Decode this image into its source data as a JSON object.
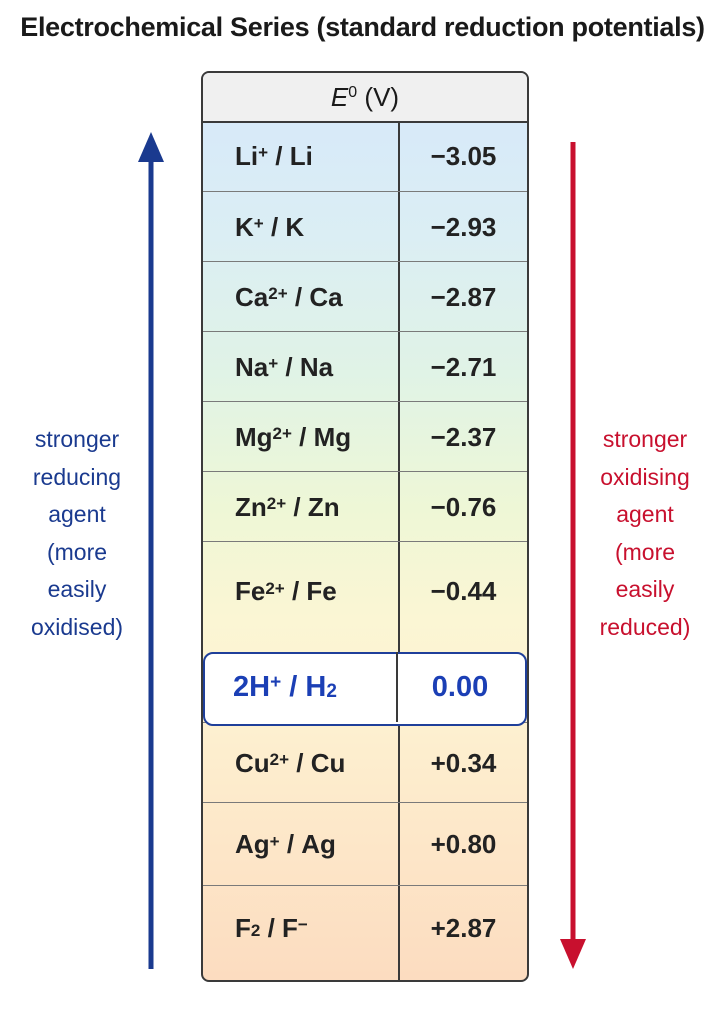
{
  "title": "Electrochemical Series (standard reduction potentials)",
  "header": {
    "symbol": "E",
    "superscript": "0",
    "unit": "(V)"
  },
  "rows": [
    {
      "ion": "Li",
      "ion_sup": "+",
      "sep": "/",
      "el": "Li",
      "el_sub": "",
      "el_sup": "",
      "value": "−3.05"
    },
    {
      "ion": "K",
      "ion_sup": "+",
      "sep": "/",
      "el": "K",
      "el_sub": "",
      "el_sup": "",
      "value": "−2.93"
    },
    {
      "ion": "Ca",
      "ion_sup": "2+",
      "sep": "/",
      "el": "Ca",
      "el_sub": "",
      "el_sup": "",
      "value": "−2.87"
    },
    {
      "ion": "Na",
      "ion_sup": "+",
      "sep": "/",
      "el": "Na",
      "el_sub": "",
      "el_sup": "",
      "value": "−2.71"
    },
    {
      "ion": "Mg",
      "ion_sup": "2+",
      "sep": "/",
      "el": "Mg",
      "el_sub": "",
      "el_sup": "",
      "value": "−2.37"
    },
    {
      "ion": "Zn",
      "ion_sup": "2+",
      "sep": "/",
      "el": "Zn",
      "el_sub": "",
      "el_sup": "",
      "value": "−0.76"
    },
    {
      "ion": "Fe",
      "ion_sup": "2+",
      "sep": "/",
      "el": "Fe",
      "el_sub": "",
      "el_sup": "",
      "value": "−0.44"
    },
    {
      "ion": "2H",
      "ion_sup": "+",
      "sep": "/",
      "el": "H",
      "el_sub": "2",
      "el_sup": "",
      "value": "0.00",
      "highlight": true
    },
    {
      "ion": "Cu",
      "ion_sup": "2+",
      "sep": "/",
      "el": "Cu",
      "el_sub": "",
      "el_sup": "",
      "value": "+0.34"
    },
    {
      "ion": "Ag",
      "ion_sup": "+",
      "sep": "/",
      "el": "Ag",
      "el_sub": "",
      "el_sup": "",
      "value": "+0.80"
    },
    {
      "ion": "F",
      "ion_sub": "2",
      "ion_sup": "",
      "sep": "/",
      "el": "F",
      "el_sub": "",
      "el_sup": "−",
      "value": "+2.87"
    }
  ],
  "left_label": [
    "stronger",
    "reducing",
    "agent",
    "(more",
    "easily",
    "oxidised)"
  ],
  "right_label": [
    "stronger",
    "oxidising",
    "agent",
    "(more",
    "easily",
    "reduced)"
  ],
  "colors": {
    "left_arrow": "#1a3a8f",
    "right_arrow": "#c8102e",
    "highlight_text": "#1b3fb5"
  }
}
